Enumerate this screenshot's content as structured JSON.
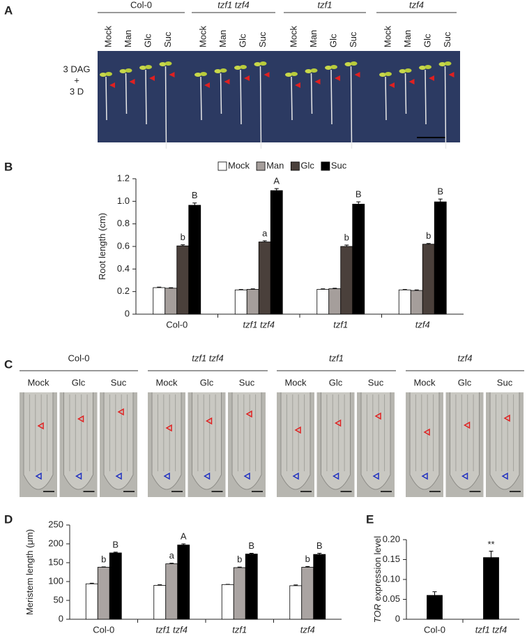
{
  "panel_labels": [
    "A",
    "B",
    "C",
    "D",
    "E"
  ],
  "panel_a": {
    "groups": [
      "Col-0",
      "tzf1 tzf4",
      "tzf1",
      "tzf4"
    ],
    "treatments": [
      "Mock",
      "Man",
      "Glc",
      "Suc"
    ],
    "condition": [
      "3 DAG",
      "+",
      "3 D"
    ]
  },
  "panel_c": {
    "groups": [
      "Col-0",
      "tzf1 tzf4",
      "tzf1",
      "tzf4"
    ],
    "treatments": [
      "Mock",
      "Glc",
      "Suc"
    ]
  },
  "chart_data": [
    {
      "type": "bar",
      "ylabel": "Root length (cm)",
      "categories": [
        "Col-0",
        "tzf1 tzf4",
        "tzf1",
        "tzf4"
      ],
      "series": [
        {
          "name": "Mock",
          "color": "#ffffff",
          "values": [
            0.235,
            0.215,
            0.22,
            0.215
          ],
          "errors": [
            0.005,
            0.004,
            0.004,
            0.004
          ]
        },
        {
          "name": "Man",
          "color": "#a59e9b",
          "values": [
            0.23,
            0.22,
            0.225,
            0.21
          ],
          "errors": [
            0.004,
            0.004,
            0.005,
            0.005
          ]
        },
        {
          "name": "Glc",
          "color": "#4a403b",
          "values": [
            0.605,
            0.64,
            0.6,
            0.62
          ],
          "errors": [
            0.01,
            0.01,
            0.012,
            0.006
          ],
          "letters": [
            "b",
            "a",
            "b",
            "b"
          ]
        },
        {
          "name": "Suc",
          "color": "#000000",
          "values": [
            0.965,
            1.095,
            0.975,
            0.995
          ],
          "errors": [
            0.02,
            0.018,
            0.02,
            0.025
          ],
          "letters": [
            "B",
            "A",
            "B",
            "B"
          ]
        }
      ],
      "ylim": [
        0,
        1.2
      ],
      "yticks": [
        0,
        0.2,
        0.4,
        0.6,
        0.8,
        {
          "value": 1,
          "label": "1.0"
        },
        1.2
      ],
      "legend": "top"
    },
    {
      "type": "bar",
      "ylabel": "Meristem length (μm)",
      "categories": [
        "Col-0",
        "tzf1 tzf4",
        "tzf1",
        "tzf4"
      ],
      "series": [
        {
          "color": "#ffffff",
          "values": [
            94,
            90,
            92,
            89
          ],
          "errors": [
            1.5,
            1.5,
            0.5,
            2
          ]
        },
        {
          "color": "#aaa4a2",
          "values": [
            138,
            147,
            137,
            138
          ],
          "errors": [
            1,
            1.5,
            1.5,
            2
          ],
          "letters": [
            "b",
            "a",
            "b",
            "b"
          ]
        },
        {
          "color": "#000000",
          "values": [
            176,
            197,
            173,
            172
          ],
          "errors": [
            2,
            3,
            2,
            3
          ],
          "letters": [
            "B",
            "A",
            "B",
            "B"
          ]
        }
      ],
      "ylim": [
        0,
        250
      ],
      "yticks": [
        0,
        50,
        100,
        150,
        200,
        250
      ]
    },
    {
      "type": "bar",
      "ylabel_italic": "TOR",
      "ylabel": "expression level",
      "categories": [
        "Col-0",
        "tzf1 tzf4"
      ],
      "series": [
        {
          "color": "#000000",
          "values": [
            0.06,
            0.155
          ],
          "errors": [
            0.009,
            0.016
          ]
        }
      ],
      "significance": [
        {
          "category": "tzf1 tzf4",
          "label": "**"
        }
      ],
      "ylim": [
        0,
        0.2
      ],
      "yticks": [
        0,
        0.05,
        {
          "value": 0.1,
          "label": "0.10"
        },
        0.15,
        {
          "value": 0.2,
          "label": "0.20"
        }
      ]
    }
  ]
}
